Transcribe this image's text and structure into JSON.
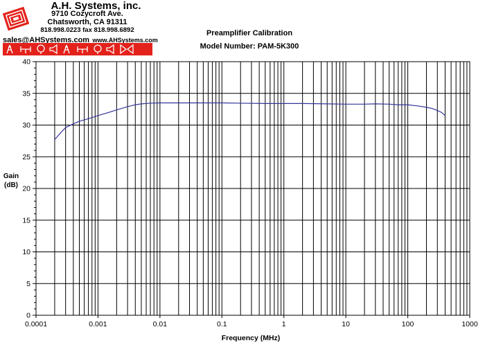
{
  "company": {
    "name": "A.H. Systems, inc.",
    "address_line1": "9710 Cozycroft Ave.",
    "address_line2": "Chatsworth, CA 91311",
    "phone_fax": "818.998.0223 fax 818.998.6892",
    "email": "sales@AHSystems.com",
    "website": "www.AHSystems.com",
    "logo_icon": "ah-systems-logo-icon",
    "strip_icons": [
      "tower-antenna-icon",
      "dipole-antenna-icon",
      "loop-antenna-icon",
      "horn-antenna-icon",
      "tower-antenna-icon",
      "dipole-antenna-icon",
      "loop-antenna-icon",
      "horn-antenna-icon",
      "biconical-antenna-icon"
    ],
    "strip_color": "#e3221b"
  },
  "chart_data": {
    "type": "line",
    "title": "Preamplifier Calibration",
    "subtitle": "Model Number: PAM-5K300",
    "xlabel": "Frequency (MHz)",
    "ylabel": [
      "Gain",
      "(dB)"
    ],
    "xscale": "log",
    "xlim": [
      0.0001,
      1000
    ],
    "ylim": [
      0,
      40
    ],
    "x_ticks": [
      "0.0001",
      "0.001",
      "0.01",
      "0.1",
      "1",
      "10",
      "100",
      "1000"
    ],
    "y_ticks": [
      "0",
      "5",
      "10",
      "15",
      "20",
      "25",
      "30",
      "35",
      "40"
    ],
    "grid": true,
    "legend": "none",
    "line_color": "#33339a",
    "series": [
      {
        "x": [
          0.0002,
          0.00025,
          0.0003,
          0.0004,
          0.0005,
          0.0007,
          0.001,
          0.0015,
          0.002,
          0.003,
          0.004,
          0.005,
          0.007,
          0.01,
          0.02,
          0.05,
          0.1,
          0.2,
          0.5,
          1,
          2,
          5,
          10,
          20,
          30,
          50,
          70,
          100,
          150,
          200,
          250,
          300,
          350,
          400
        ],
        "y": [
          27.7,
          28.8,
          29.6,
          30.2,
          30.6,
          31.0,
          31.5,
          32.0,
          32.4,
          32.9,
          33.2,
          33.35,
          33.45,
          33.5,
          33.5,
          33.5,
          33.5,
          33.45,
          33.4,
          33.4,
          33.4,
          33.35,
          33.3,
          33.3,
          33.35,
          33.3,
          33.2,
          33.2,
          33.0,
          32.8,
          32.6,
          32.3,
          32.0,
          31.5
        ]
      }
    ]
  }
}
